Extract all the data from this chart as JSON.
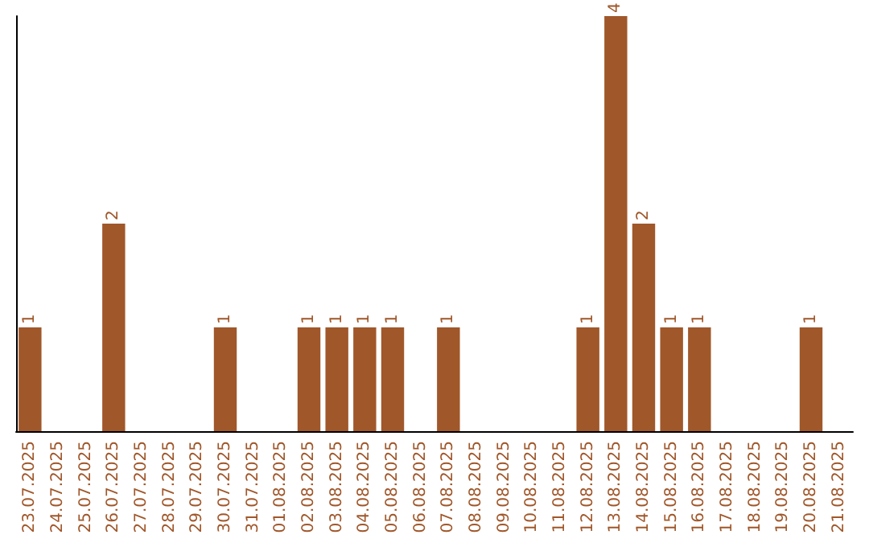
{
  "chart_data": {
    "type": "bar",
    "categories": [
      "23.07.2025",
      "24.07.2025",
      "25.07.2025",
      "26.07.2025",
      "27.07.2025",
      "28.07.2025",
      "29.07.2025",
      "30.07.2025",
      "31.07.2025",
      "01.08.2025",
      "02.08.2025",
      "03.08.2025",
      "04.08.2025",
      "05.08.2025",
      "06.08.2025",
      "07.08.2025",
      "08.08.2025",
      "09.08.2025",
      "10.08.2025",
      "11.08.2025",
      "12.08.2025",
      "13.08.2025",
      "14.08.2025",
      "15.08.2025",
      "16.08.2025",
      "17.08.2025",
      "18.08.2025",
      "19.08.2025",
      "20.08.2025",
      "21.08.2025"
    ],
    "values": [
      1,
      0,
      0,
      2,
      0,
      0,
      0,
      1,
      0,
      0,
      1,
      1,
      1,
      1,
      0,
      1,
      0,
      0,
      0,
      0,
      1,
      4,
      2,
      1,
      1,
      0,
      0,
      0,
      1,
      0
    ],
    "value_labels": [
      "1",
      null,
      null,
      "2",
      null,
      null,
      null,
      "1",
      null,
      null,
      "1",
      "1",
      "1",
      "1",
      null,
      "1",
      null,
      null,
      null,
      null,
      "1",
      "4",
      "2",
      "1",
      "1",
      null,
      null,
      null,
      "1",
      null
    ],
    "color": "#a0572a",
    "tick_labels": "x"
  }
}
